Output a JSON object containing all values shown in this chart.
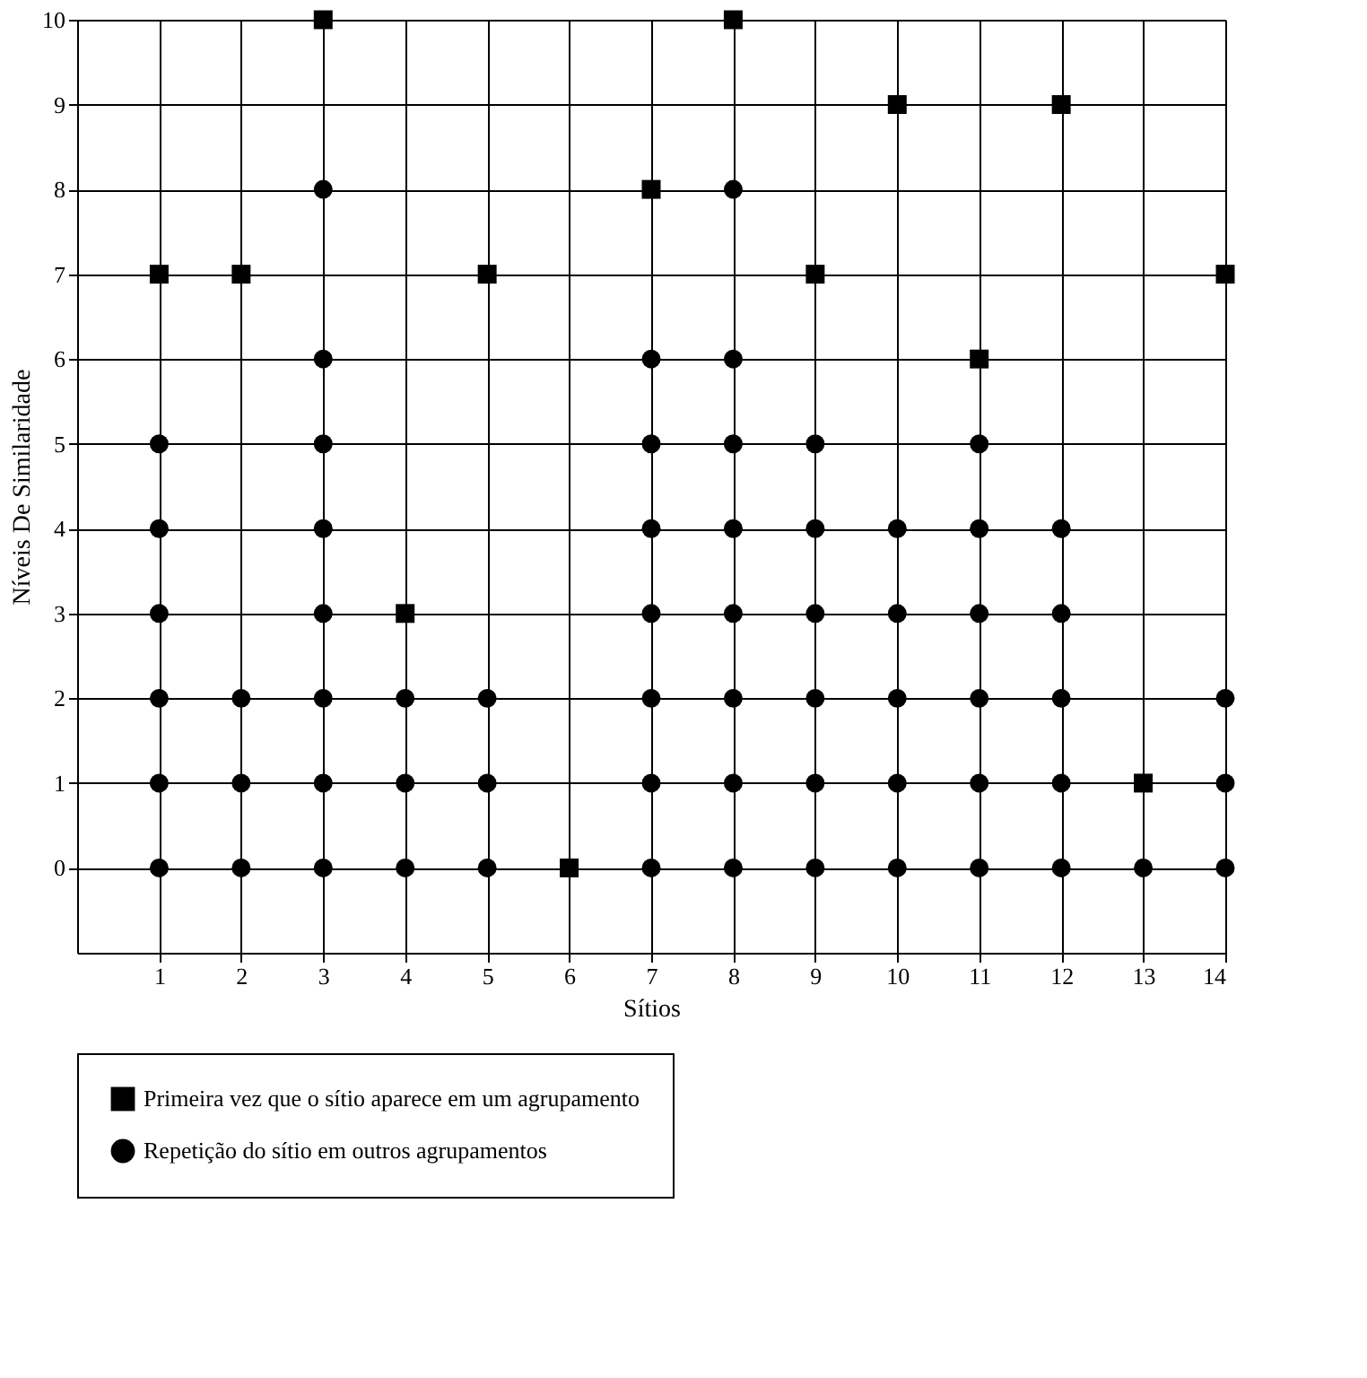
{
  "chart_data": {
    "type": "scatter",
    "xlabel": "Sítios",
    "ylabel": "Níveis De Similaridade",
    "xlim": [
      0,
      14
    ],
    "xticks": [
      1,
      2,
      3,
      4,
      5,
      6,
      7,
      8,
      9,
      10,
      11,
      12,
      13,
      14
    ],
    "ylim": [
      -1,
      10
    ],
    "yticks": [
      0,
      1,
      2,
      3,
      4,
      5,
      6,
      7,
      8,
      9,
      10
    ],
    "grid": true,
    "legend": "bottom",
    "series": [
      {
        "name": "Primeira vez que o sítio aparece em um agrupamento",
        "color": "#000000",
        "marker": "square",
        "x": [
          1,
          2,
          3,
          4,
          5,
          6,
          7,
          8,
          9,
          10,
          11,
          12,
          13,
          14
        ],
        "values": [
          7,
          7,
          10,
          3,
          7,
          0,
          8,
          10,
          7,
          9,
          6,
          9,
          1,
          7
        ]
      },
      {
        "name": "Repetição do sítio em outros agrupamentos",
        "color": "#000000",
        "marker": "circle",
        "x": [
          1,
          1,
          1,
          1,
          1,
          1,
          2,
          2,
          2,
          3,
          3,
          3,
          3,
          3,
          3,
          3,
          3,
          4,
          4,
          4,
          5,
          5,
          5,
          7,
          7,
          7,
          7,
          7,
          7,
          7,
          8,
          8,
          8,
          8,
          8,
          8,
          8,
          8,
          9,
          9,
          9,
          9,
          9,
          9,
          10,
          10,
          10,
          10,
          10,
          11,
          11,
          11,
          11,
          11,
          11,
          12,
          12,
          12,
          12,
          12,
          13,
          14,
          14,
          14
        ],
        "values": [
          0,
          1,
          2,
          3,
          4,
          5,
          0,
          1,
          2,
          0,
          1,
          2,
          3,
          4,
          5,
          6,
          8,
          0,
          1,
          2,
          0,
          1,
          2,
          0,
          1,
          2,
          3,
          4,
          5,
          6,
          0,
          1,
          2,
          3,
          4,
          5,
          6,
          8,
          0,
          1,
          2,
          3,
          4,
          5,
          0,
          1,
          2,
          3,
          4,
          0,
          1,
          2,
          3,
          4,
          5,
          0,
          1,
          2,
          3,
          4,
          0,
          0,
          1,
          2
        ]
      }
    ]
  }
}
